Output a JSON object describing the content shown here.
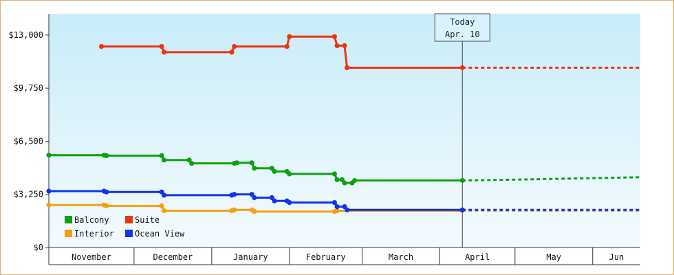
{
  "chart_data": {
    "type": "line",
    "title": "",
    "xlabel": "",
    "ylabel": "",
    "ylim": [
      0,
      13000
    ],
    "y_ticks": [
      "$0",
      "$3,250",
      "$6,500",
      "$9,750",
      "$13,000"
    ],
    "y_tick_values": [
      0,
      3250,
      6500,
      9750,
      13000
    ],
    "x_axis_months": [
      "November",
      "December",
      "January",
      "February",
      "March",
      "April",
      "May",
      "Jun"
    ],
    "today_marker": {
      "line1": "Today",
      "line2": "Apr. 10",
      "date": "2024-04-10"
    },
    "grid": false,
    "legend_position": "bottom-left",
    "series": [
      {
        "name": "Balcony",
        "color": "#11a011",
        "points": [
          [
            "2023-10-28",
            5650
          ],
          [
            "2023-11-19",
            5650
          ],
          [
            "2023-11-20",
            5620
          ],
          [
            "2023-12-12",
            5620
          ],
          [
            "2023-12-13",
            5350
          ],
          [
            "2023-12-23",
            5350
          ],
          [
            "2023-12-24",
            5150
          ],
          [
            "2024-01-10",
            5150
          ],
          [
            "2024-01-11",
            5180
          ],
          [
            "2024-01-17",
            5180
          ],
          [
            "2024-01-18",
            4850
          ],
          [
            "2024-01-25",
            4850
          ],
          [
            "2024-01-26",
            4650
          ],
          [
            "2024-01-31",
            4650
          ],
          [
            "2024-02-01",
            4500
          ],
          [
            "2024-02-19",
            4500
          ],
          [
            "2024-02-20",
            4150
          ],
          [
            "2024-02-22",
            4150
          ],
          [
            "2024-02-23",
            3950
          ],
          [
            "2024-02-26",
            3950
          ],
          [
            "2024-02-27",
            4100
          ],
          [
            "2024-04-10",
            4100
          ]
        ],
        "projection": [
          [
            "2024-04-10",
            4100
          ],
          [
            "2024-05-01",
            4150
          ],
          [
            "2024-06-20",
            4300
          ]
        ]
      },
      {
        "name": "Suite",
        "color": "#ee3311",
        "points": [
          [
            "2023-11-18",
            12300
          ],
          [
            "2023-12-12",
            12300
          ],
          [
            "2023-12-13",
            11950
          ],
          [
            "2024-01-09",
            11950
          ],
          [
            "2024-01-10",
            12300
          ],
          [
            "2024-01-31",
            12300
          ],
          [
            "2024-02-01",
            12900
          ],
          [
            "2024-02-19",
            12900
          ],
          [
            "2024-02-20",
            12350
          ],
          [
            "2024-02-23",
            12350
          ],
          [
            "2024-02-24",
            11000
          ],
          [
            "2024-04-10",
            11000
          ]
        ],
        "projection": [
          [
            "2024-04-10",
            11000
          ],
          [
            "2024-06-20",
            11000
          ]
        ]
      },
      {
        "name": "Interior",
        "color": "#f5a010",
        "points": [
          [
            "2023-10-28",
            2600
          ],
          [
            "2023-11-19",
            2600
          ],
          [
            "2023-11-20",
            2550
          ],
          [
            "2023-12-12",
            2550
          ],
          [
            "2023-12-13",
            2250
          ],
          [
            "2024-01-09",
            2250
          ],
          [
            "2024-01-10",
            2300
          ],
          [
            "2024-01-17",
            2300
          ],
          [
            "2024-01-18",
            2200
          ],
          [
            "2024-02-19",
            2200
          ],
          [
            "2024-02-20",
            2250
          ],
          [
            "2024-04-10",
            2250
          ]
        ],
        "projection": [
          [
            "2024-04-10",
            2250
          ],
          [
            "2024-06-20",
            2250
          ]
        ]
      },
      {
        "name": "Ocean View",
        "color": "#1133ee",
        "points": [
          [
            "2023-10-28",
            3450
          ],
          [
            "2023-11-19",
            3450
          ],
          [
            "2023-11-20",
            3400
          ],
          [
            "2023-12-12",
            3400
          ],
          [
            "2023-12-13",
            3200
          ],
          [
            "2024-01-09",
            3200
          ],
          [
            "2024-01-10",
            3250
          ],
          [
            "2024-01-17",
            3250
          ],
          [
            "2024-01-18",
            3050
          ],
          [
            "2024-01-25",
            3050
          ],
          [
            "2024-01-26",
            2850
          ],
          [
            "2024-01-31",
            2850
          ],
          [
            "2024-02-01",
            2750
          ],
          [
            "2024-02-19",
            2750
          ],
          [
            "2024-02-20",
            2500
          ],
          [
            "2024-02-23",
            2500
          ],
          [
            "2024-02-24",
            2300
          ],
          [
            "2024-04-10",
            2300
          ]
        ],
        "projection": [
          [
            "2024-04-10",
            2300
          ],
          [
            "2024-06-20",
            2300
          ]
        ]
      }
    ]
  }
}
